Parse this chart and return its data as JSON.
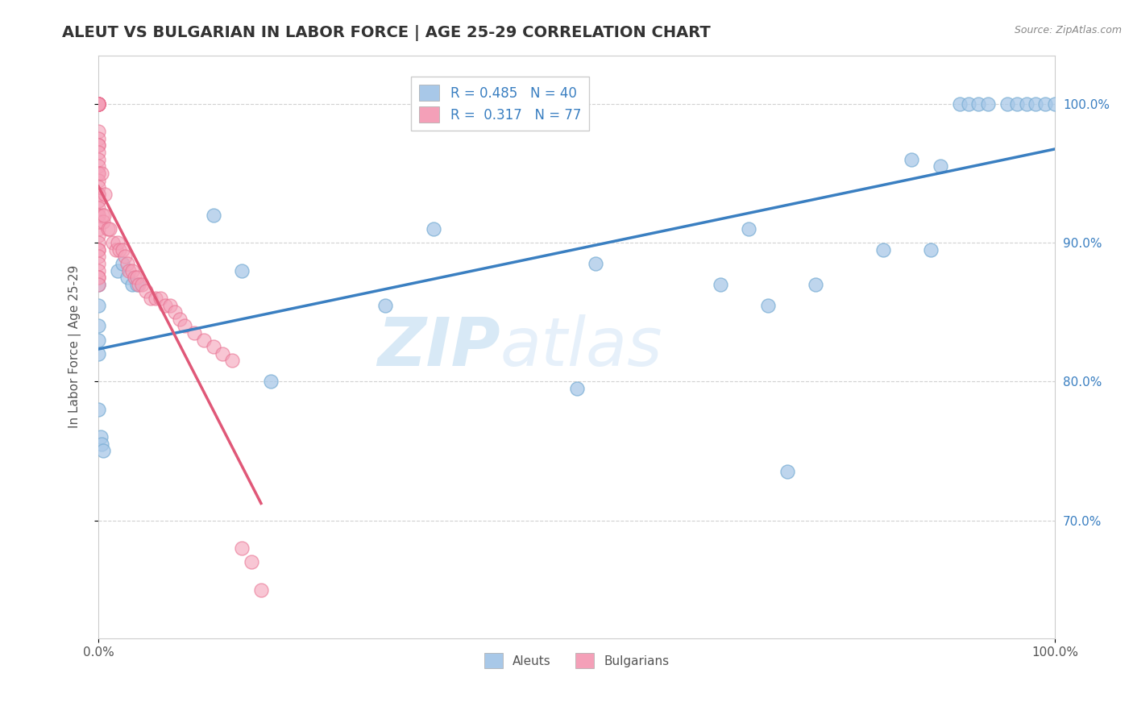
{
  "title": "ALEUT VS BULGARIAN IN LABOR FORCE | AGE 25-29 CORRELATION CHART",
  "source_text": "Source: ZipAtlas.com",
  "ylabel": "In Labor Force | Age 25-29",
  "xlim": [
    0,
    1.0
  ],
  "ylim": [
    0.615,
    1.035
  ],
  "ytick_values": [
    0.7,
    0.8,
    0.9,
    1.0
  ],
  "yticklabels": [
    "70.0%",
    "80.0%",
    "90.0%",
    "100.0%"
  ],
  "aleut_R": 0.485,
  "aleut_N": 40,
  "bulgarian_R": 0.317,
  "bulgarian_N": 77,
  "aleut_color": "#a8c8e8",
  "bulgarian_color": "#f4a0b8",
  "aleut_edge_color": "#7aaed4",
  "bulgarian_edge_color": "#e87090",
  "aleut_trend_color": "#3a7fc1",
  "bulgarian_trend_color": "#e05878",
  "watermark_zip": "ZIP",
  "watermark_atlas": "atlas",
  "aleut_x": [
    0.0,
    0.0,
    0.0,
    0.0,
    0.0,
    0.0,
    0.002,
    0.003,
    0.005,
    0.02,
    0.025,
    0.03,
    0.035,
    0.04,
    0.12,
    0.15,
    0.18,
    0.3,
    0.35,
    0.5,
    0.52,
    0.65,
    0.68,
    0.7,
    0.72,
    0.75,
    0.82,
    0.85,
    0.87,
    0.88,
    0.9,
    0.91,
    0.92,
    0.93,
    0.95,
    0.96,
    0.97,
    0.98,
    0.99,
    1.0
  ],
  "aleut_y": [
    0.87,
    0.855,
    0.84,
    0.83,
    0.82,
    0.78,
    0.76,
    0.755,
    0.75,
    0.88,
    0.885,
    0.875,
    0.87,
    0.87,
    0.92,
    0.88,
    0.8,
    0.855,
    0.91,
    0.795,
    0.885,
    0.87,
    0.91,
    0.855,
    0.735,
    0.87,
    0.895,
    0.96,
    0.895,
    0.955,
    1.0,
    1.0,
    1.0,
    1.0,
    1.0,
    1.0,
    1.0,
    1.0,
    1.0,
    1.0
  ],
  "bulgarian_x": [
    0.0,
    0.0,
    0.0,
    0.0,
    0.0,
    0.0,
    0.0,
    0.0,
    0.0,
    0.0,
    0.0,
    0.0,
    0.0,
    0.0,
    0.0,
    0.0,
    0.0,
    0.0,
    0.0,
    0.0,
    0.0,
    0.0,
    0.0,
    0.0,
    0.0,
    0.0,
    0.0,
    0.0,
    0.0,
    0.0,
    0.0,
    0.0,
    0.0,
    0.0,
    0.0,
    0.0,
    0.0,
    0.0,
    0.0,
    0.0,
    0.003,
    0.004,
    0.005,
    0.006,
    0.007,
    0.01,
    0.012,
    0.015,
    0.018,
    0.02,
    0.022,
    0.025,
    0.028,
    0.03,
    0.032,
    0.035,
    0.038,
    0.04,
    0.042,
    0.045,
    0.05,
    0.055,
    0.06,
    0.065,
    0.07,
    0.075,
    0.08,
    0.085,
    0.09,
    0.1,
    0.11,
    0.12,
    0.13,
    0.14,
    0.15,
    0.16,
    0.17
  ],
  "bulgarian_y": [
    1.0,
    1.0,
    1.0,
    1.0,
    1.0,
    1.0,
    1.0,
    1.0,
    1.0,
    1.0,
    0.98,
    0.975,
    0.97,
    0.97,
    0.965,
    0.96,
    0.955,
    0.95,
    0.95,
    0.945,
    0.94,
    0.935,
    0.935,
    0.93,
    0.93,
    0.925,
    0.92,
    0.92,
    0.915,
    0.91,
    0.905,
    0.9,
    0.895,
    0.895,
    0.89,
    0.885,
    0.88,
    0.875,
    0.875,
    0.87,
    0.95,
    0.92,
    0.915,
    0.92,
    0.935,
    0.91,
    0.91,
    0.9,
    0.895,
    0.9,
    0.895,
    0.895,
    0.89,
    0.885,
    0.88,
    0.88,
    0.875,
    0.875,
    0.87,
    0.87,
    0.865,
    0.86,
    0.86,
    0.86,
    0.855,
    0.855,
    0.85,
    0.845,
    0.84,
    0.835,
    0.83,
    0.825,
    0.82,
    0.815,
    0.68,
    0.67,
    0.65
  ]
}
